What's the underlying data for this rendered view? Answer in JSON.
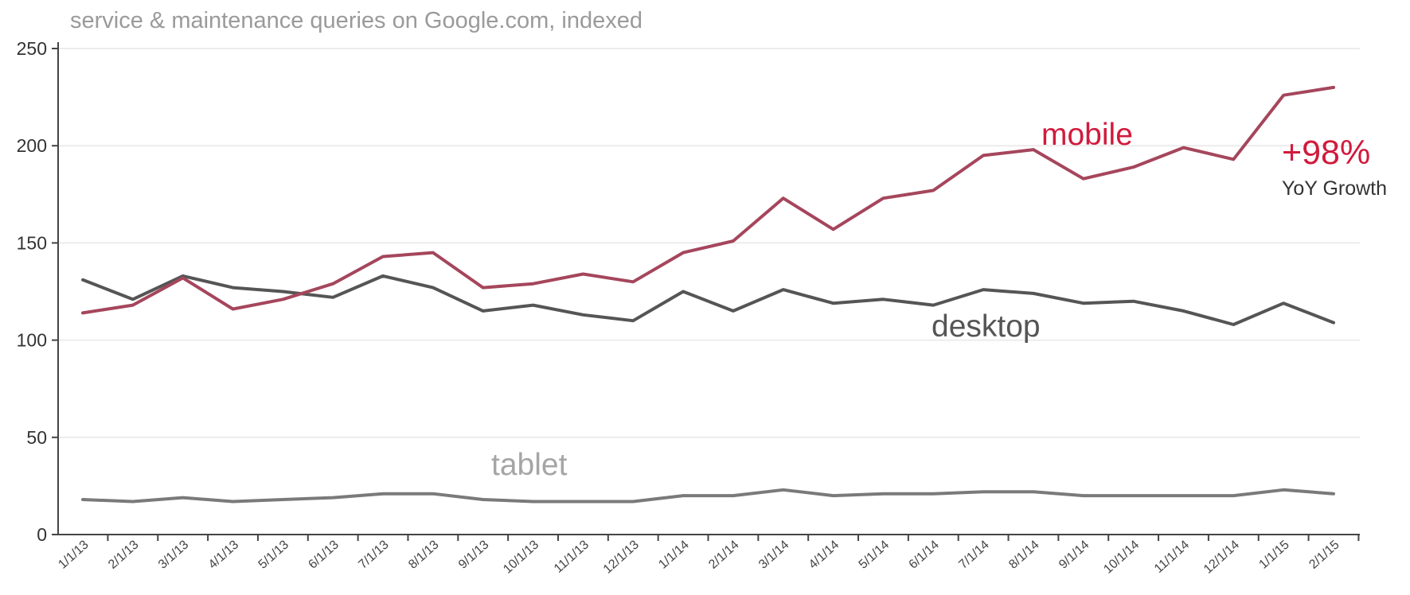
{
  "chart_data": {
    "type": "line",
    "title": "service & maintenance queries on Google.com, indexed",
    "xlabel": "",
    "ylabel": "",
    "ylim": [
      0,
      250
    ],
    "y_ticks": [
      0,
      50,
      100,
      150,
      200,
      250
    ],
    "grid": true,
    "categories": [
      "1/1/13",
      "2/1/13",
      "3/1/13",
      "4/1/13",
      "5/1/13",
      "6/1/13",
      "7/1/13",
      "8/1/13",
      "9/1/13",
      "10/1/13",
      "11/1/13",
      "12/1/13",
      "1/1/14",
      "2/1/14",
      "3/1/14",
      "4/1/14",
      "5/1/14",
      "6/1/14",
      "7/1/14",
      "8/1/14",
      "9/1/14",
      "10/1/14",
      "11/1/14",
      "12/1/14",
      "1/1/15",
      "2/1/15"
    ],
    "series": [
      {
        "name": "mobile",
        "color": "#a5465c",
        "label_color": "#d11a3c",
        "values": [
          114,
          118,
          132,
          116,
          121,
          129,
          143,
          145,
          127,
          129,
          134,
          130,
          145,
          151,
          173,
          157,
          173,
          177,
          195,
          198,
          183,
          189,
          199,
          193,
          226,
          230
        ]
      },
      {
        "name": "desktop",
        "color": "#555555",
        "label_color": "#555555",
        "values": [
          131,
          121,
          133,
          127,
          125,
          122,
          133,
          127,
          115,
          118,
          113,
          110,
          125,
          115,
          126,
          119,
          121,
          118,
          126,
          124,
          119,
          120,
          115,
          108,
          119,
          109
        ]
      },
      {
        "name": "tablet",
        "color": "#7a7a7a",
        "label_color": "#a5a5a5",
        "values": [
          18,
          17,
          19,
          17,
          18,
          19,
          21,
          21,
          18,
          17,
          17,
          17,
          20,
          20,
          23,
          20,
          21,
          21,
          22,
          22,
          20,
          20,
          20,
          20,
          23,
          21
        ]
      }
    ],
    "annotation": {
      "value": "+98%",
      "text": "YoY Growth",
      "color": "#d11a3c"
    }
  }
}
